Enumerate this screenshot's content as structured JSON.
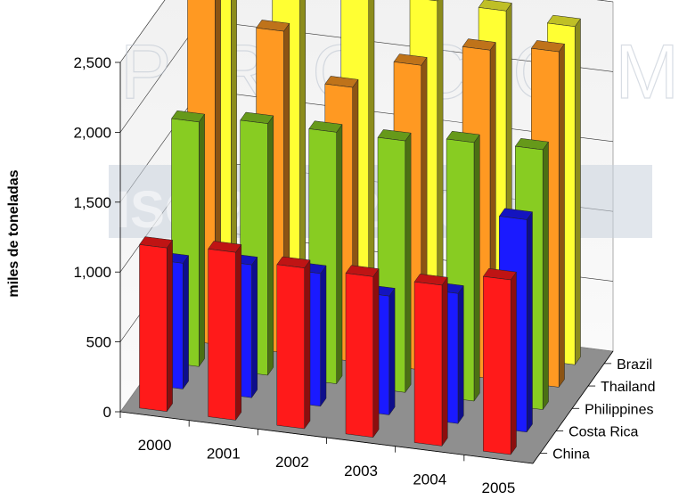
{
  "watermark": {
    "line1": "PROCOMER",
    "line2": "ISO 9001-2000"
  },
  "chart_data": {
    "type": "bar",
    "ylabel": "miles de toneladas",
    "ylim": [
      0,
      2500
    ],
    "yticks": [
      "0",
      "500",
      "1,000",
      "1,500",
      "2,000",
      "2,500"
    ],
    "categories": [
      "2000",
      "2001",
      "2002",
      "2003",
      "2004",
      "2005"
    ],
    "series": [
      {
        "name": "China",
        "color": "#ff1a1a",
        "values": [
          1170,
          1200,
          1150,
          1150,
          1150,
          1250
        ]
      },
      {
        "name": "Costa Rica",
        "color": "#1a1aff",
        "values": [
          900,
          950,
          950,
          850,
          930,
          1520
        ]
      },
      {
        "name": "Philippines",
        "color": "#88cc22",
        "values": [
          1750,
          1800,
          1800,
          1800,
          1850,
          1860
        ]
      },
      {
        "name": "Thailand",
        "color": "#ff9922",
        "values": [
          2500,
          2300,
          1960,
          2180,
          2350,
          2400
        ]
      },
      {
        "name": "Brazil",
        "color": "#ffff33",
        "values": [
          2380,
          2490,
          2500,
          2480,
          2470,
          2420
        ]
      }
    ],
    "grid": true,
    "style": "3d-columns"
  }
}
